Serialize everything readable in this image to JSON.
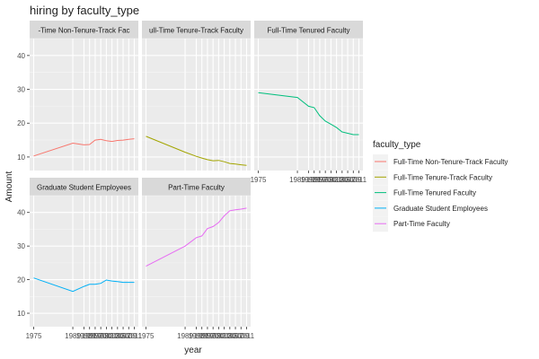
{
  "chart_data": {
    "type": "line",
    "title": "hiring by faculty_type",
    "xlabel": "year",
    "ylabel": "Amount",
    "ylim": [
      6,
      45
    ],
    "yticks": [
      10,
      20,
      30,
      40
    ],
    "xticks": [
      1975,
      1989,
      1993,
      1995,
      1997,
      1999,
      2001,
      2003,
      2005,
      2007,
      2009,
      2011
    ],
    "xtick_labels": [
      "1975",
      "1989",
      "1993",
      "1995",
      "1997",
      "1999",
      "2001",
      "2003",
      "2005",
      "2007",
      "2009",
      "2011"
    ],
    "grid": true,
    "legend_position": "right",
    "legend_title": "faculty_type",
    "series": [
      {
        "name": "Full-Time Non-Tenure-Track Faculty",
        "panel_label": "-Time Non-Tenure-Track Fac",
        "color": "#F8766D",
        "x": [
          1975,
          1989,
          1993,
          1995,
          1997,
          1999,
          2001,
          2003,
          2005,
          2007,
          2009,
          2011
        ],
        "y": [
          10.3,
          14.1,
          13.6,
          13.7,
          15.0,
          15.2,
          14.8,
          14.6,
          14.9,
          15.0,
          15.2,
          15.4
        ]
      },
      {
        "name": "Full-Time Tenure-Track Faculty",
        "panel_label": "ull-Time Tenure-Track Faculty",
        "color": "#A3A500",
        "x": [
          1975,
          1989,
          1993,
          1995,
          1997,
          1999,
          2001,
          2003,
          2005,
          2007,
          2009,
          2011
        ],
        "y": [
          16.1,
          11.4,
          10.2,
          9.7,
          9.2,
          8.9,
          9.0,
          8.6,
          8.1,
          7.9,
          7.7,
          7.5
        ]
      },
      {
        "name": "Full-Time Tenured Faculty",
        "panel_label": "Full-Time Tenured Faculty",
        "color": "#00BF7D",
        "x": [
          1975,
          1989,
          1993,
          1995,
          1997,
          1999,
          2001,
          2003,
          2005,
          2007,
          2009,
          2011
        ],
        "y": [
          29.0,
          27.6,
          25.0,
          24.6,
          22.2,
          20.6,
          19.7,
          18.7,
          17.4,
          17.0,
          16.6,
          16.6
        ]
      },
      {
        "name": "Graduate Student Employees",
        "panel_label": "Graduate Student Employees",
        "color": "#00B0F6",
        "x": [
          1975,
          1989,
          1993,
          1995,
          1997,
          1999,
          2001,
          2003,
          2005,
          2007,
          2009,
          2011
        ],
        "y": [
          20.5,
          16.5,
          18.0,
          18.6,
          18.6,
          18.9,
          19.9,
          19.6,
          19.4,
          19.2,
          19.2,
          19.2
        ]
      },
      {
        "name": "Part-Time Faculty",
        "panel_label": "Part-Time Faculty",
        "color": "#E76BF3",
        "x": [
          1975,
          1989,
          1993,
          1995,
          1997,
          1999,
          2001,
          2003,
          2005,
          2007,
          2009,
          2011
        ],
        "y": [
          24.0,
          30.0,
          32.5,
          33.0,
          35.2,
          35.8,
          37.0,
          39.0,
          40.5,
          40.8,
          41.0,
          41.3
        ]
      }
    ]
  }
}
